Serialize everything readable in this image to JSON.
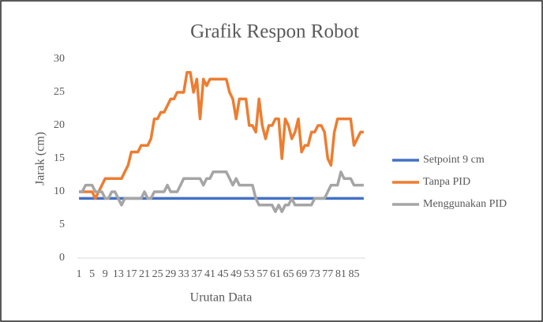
{
  "chart_data": {
    "type": "line",
    "title": "Grafik Respon Robot",
    "x_label": "Urutan Data",
    "y_label": "Jarak (cm)",
    "categories": [
      1,
      null,
      null,
      null,
      5,
      null,
      null,
      null,
      9,
      null,
      null,
      null,
      13,
      null,
      null,
      null,
      17,
      null,
      null,
      null,
      21,
      null,
      null,
      null,
      25,
      null,
      null,
      null,
      29,
      null,
      null,
      null,
      33,
      null,
      null,
      null,
      37,
      null,
      null,
      null,
      41,
      null,
      null,
      null,
      45,
      null,
      null,
      null,
      49,
      null,
      null,
      null,
      53,
      null,
      null,
      null,
      57,
      null,
      null,
      null,
      61,
      null,
      null,
      null,
      65,
      null,
      null,
      null,
      69,
      null,
      null,
      null,
      73,
      null,
      null,
      null,
      77,
      null,
      null,
      null,
      81,
      null,
      null,
      null,
      85,
      null,
      null,
      null
    ],
    "series": [
      {
        "name": "Setpoint 9 cm",
        "color": "#4472c4",
        "values": [
          9,
          9,
          9,
          9,
          9,
          9,
          9,
          9,
          9,
          9,
          9,
          9,
          9,
          9,
          9,
          9,
          9,
          9,
          9,
          9,
          9,
          9,
          9,
          9,
          9,
          9,
          9,
          9,
          9,
          9,
          9,
          9,
          9,
          9,
          9,
          9,
          9,
          9,
          9,
          9,
          9,
          9,
          9,
          9,
          9,
          9,
          9,
          9,
          9,
          9,
          9,
          9,
          9,
          9,
          9,
          9,
          9,
          9,
          9,
          9,
          9,
          9,
          9,
          9,
          9,
          9,
          9,
          9,
          9,
          9,
          9,
          9,
          9,
          9,
          9,
          9,
          9,
          9,
          9,
          9,
          9,
          9,
          9,
          9,
          9,
          9,
          9,
          9
        ]
      },
      {
        "name": "Tanpa PID",
        "color": "#ed7d31",
        "values": [
          10,
          10,
          10,
          10,
          10,
          9,
          10,
          11,
          12,
          12,
          12,
          12,
          12,
          12,
          13,
          14,
          16,
          16,
          16,
          17,
          17,
          17,
          18,
          21,
          21,
          22,
          22,
          23,
          24,
          24,
          25,
          25,
          25,
          28,
          28,
          25,
          27,
          21,
          27,
          26,
          27,
          27,
          27,
          27,
          27,
          27,
          25,
          24,
          21,
          24,
          24,
          24,
          20,
          20,
          19,
          24,
          20,
          18,
          20,
          20,
          21,
          21,
          15,
          21,
          20,
          18,
          19,
          21,
          16,
          17,
          17,
          19,
          19,
          20,
          20,
          19,
          15,
          14,
          19,
          21,
          21,
          21,
          21,
          21,
          17,
          18,
          19,
          19
        ]
      },
      {
        "name": "Menggunakan PID",
        "color": "#a5a5a5",
        "values": [
          10,
          10,
          11,
          11,
          11,
          10,
          10,
          10,
          9,
          9,
          10,
          10,
          9,
          8,
          9,
          9,
          9,
          9,
          9,
          9,
          10,
          9,
          9,
          10,
          10,
          10,
          10,
          11,
          10,
          10,
          10,
          11,
          12,
          12,
          12,
          12,
          12,
          12,
          11,
          12,
          12,
          13,
          13,
          13,
          13,
          13,
          12,
          11,
          12,
          11,
          11,
          11,
          11,
          11,
          9,
          8,
          8,
          8,
          8,
          8,
          7,
          8,
          7,
          8,
          8,
          9,
          8,
          8,
          8,
          8,
          8,
          8,
          9,
          9,
          9,
          9,
          10,
          11,
          11,
          11,
          13,
          12,
          12,
          12,
          11,
          11,
          11,
          11
        ]
      }
    ],
    "ylim": [
      0,
      30
    ],
    "yticks": [
      0,
      5,
      10,
      15,
      20,
      25,
      30
    ],
    "grid": false,
    "legend": "right"
  }
}
